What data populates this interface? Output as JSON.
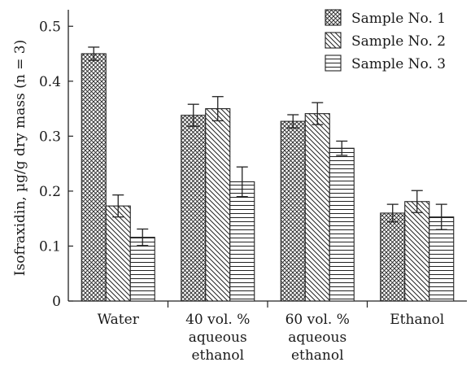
{
  "chart_data": {
    "type": "bar",
    "ylabel": "Isofraxidin, µg/g dry mass (n = 3)",
    "ylim": [
      0,
      0.53
    ],
    "yticks": [
      "0",
      "0.1",
      "0.2",
      "0.3",
      "0.4",
      "0.5"
    ],
    "ytick_values": [
      0,
      0.1,
      0.2,
      0.3,
      0.4,
      0.5
    ],
    "categories": [
      [
        "Water"
      ],
      [
        "40 vol. %",
        "aqueous",
        "ethanol"
      ],
      [
        "60 vol. %",
        "aqueous",
        "ethanol"
      ],
      [
        "Ethanol"
      ]
    ],
    "series": [
      {
        "name": "Sample No. 1",
        "pattern": "crosshatch",
        "values": [
          0.45,
          0.338,
          0.327,
          0.16
        ],
        "errors": [
          0.012,
          0.02,
          0.012,
          0.016
        ]
      },
      {
        "name": "Sample No. 2",
        "pattern": "diagonal",
        "values": [
          0.173,
          0.35,
          0.341,
          0.181
        ],
        "errors": [
          0.02,
          0.022,
          0.02,
          0.02
        ]
      },
      {
        "name": "Sample No. 3",
        "pattern": "horizontal",
        "values": [
          0.116,
          0.217,
          0.278,
          0.153
        ],
        "errors": [
          0.015,
          0.027,
          0.013,
          0.023
        ]
      }
    ],
    "legend_position": "top-right",
    "grid": false
  }
}
